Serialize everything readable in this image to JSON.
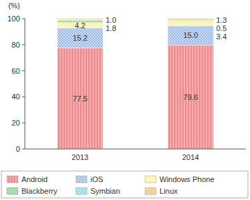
{
  "chart_data": {
    "type": "bar",
    "stacked": true,
    "data_labels": true,
    "grid": false,
    "legend": "bottom",
    "y_label": "(%)",
    "categories": [
      "2013",
      "2014"
    ],
    "ylim": [
      0,
      100
    ],
    "yticks": [
      0,
      20,
      40,
      60,
      80,
      100
    ],
    "series": [
      {
        "name": "Android",
        "color": "#f5aeb0",
        "values": [
          77.5,
          79.6
        ],
        "value_labels": [
          "77.5",
          "79.6"
        ]
      },
      {
        "name": "iOS",
        "color": "#cfe0f6",
        "values": [
          15.2,
          15.0
        ],
        "value_labels": [
          "15.2",
          "15.0"
        ]
      },
      {
        "name": "Windows Phone",
        "color": "#fcf6b4",
        "values": [
          4.2,
          3.4
        ],
        "value_labels": [
          "4.2",
          "3.4"
        ]
      },
      {
        "name": "Blackberry",
        "color": "#c6e8c4",
        "values": [
          1.8,
          0.5
        ],
        "value_labels": [
          "1.8",
          "0.5"
        ]
      },
      {
        "name": "Symbian",
        "color": "#c9eef7",
        "values": [
          0.3,
          0.2
        ],
        "value_labels": [
          null,
          null
        ]
      },
      {
        "name": "Linux",
        "color": "#fde2b6",
        "values": [
          1.0,
          1.3
        ],
        "value_labels": [
          "1.0",
          "1.3"
        ]
      }
    ]
  }
}
